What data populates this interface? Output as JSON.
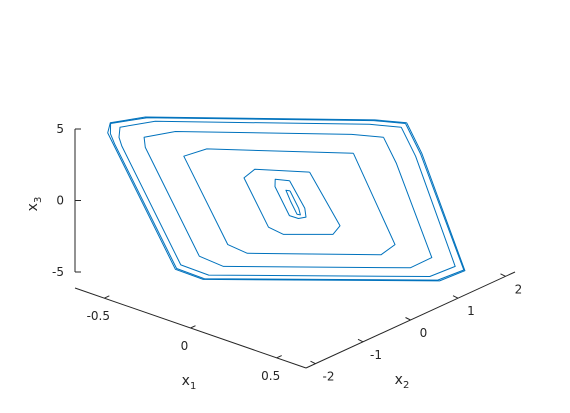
{
  "chart_data": {
    "type": "line",
    "projection": "3d",
    "grid": false,
    "axes": {
      "x1": {
        "label": "x",
        "subscript": "1",
        "ticks": [
          "-0.5",
          "0",
          "0.5"
        ]
      },
      "x2": {
        "label": "x",
        "subscript": "2",
        "ticks": [
          "-2",
          "-1",
          "0",
          "1",
          "2"
        ]
      },
      "x3": {
        "label": "x",
        "subscript": "3",
        "ticks": [
          "-5",
          "0",
          "5"
        ]
      }
    },
    "series": [
      {
        "color": "#0072BD",
        "loops": [
          [
            [
              2.0,
              5.6
            ],
            [
              1.6,
              5.8
            ],
            [
              -1.4,
              6.0
            ],
            [
              -1.9,
              5.6
            ],
            [
              -2.0,
              4.9
            ],
            [
              -2.0,
              4.2
            ],
            [
              -2.0,
              -4.5
            ],
            [
              -1.7,
              -5.2
            ],
            [
              1.4,
              -5.3
            ],
            [
              1.8,
              -4.6
            ],
            [
              2.0,
              3.5
            ],
            [
              2.0,
              5.6
            ]
          ],
          [
            [
              1.98,
              5.55
            ],
            [
              1.58,
              5.75
            ],
            [
              -1.38,
              5.95
            ],
            [
              -1.9,
              5.55
            ],
            [
              -1.97,
              4.85
            ],
            [
              -1.98,
              4.15
            ],
            [
              -1.98,
              -4.45
            ],
            [
              -1.68,
              -5.15
            ],
            [
              1.38,
              -5.25
            ],
            [
              1.79,
              -4.55
            ],
            [
              1.98,
              3.45
            ],
            [
              1.98,
              5.55
            ]
          ],
          [
            [
              1.9,
              5.3
            ],
            [
              1.5,
              5.5
            ],
            [
              -1.3,
              5.7
            ],
            [
              -1.8,
              5.3
            ],
            [
              -1.88,
              4.6
            ],
            [
              -1.9,
              4.0
            ],
            [
              -1.9,
              -4.2
            ],
            [
              -1.6,
              -4.9
            ],
            [
              1.3,
              -5.0
            ],
            [
              1.7,
              -4.3
            ],
            [
              1.9,
              3.3
            ],
            [
              1.9,
              5.3
            ]
          ],
          [
            [
              1.6,
              4.6
            ],
            [
              1.2,
              4.8
            ],
            [
              -1.1,
              5.0
            ],
            [
              -1.55,
              4.6
            ],
            [
              -1.6,
              3.9
            ],
            [
              -1.6,
              -3.6
            ],
            [
              -1.35,
              -4.3
            ],
            [
              1.1,
              -4.4
            ],
            [
              1.45,
              -3.7
            ],
            [
              1.6,
              2.8
            ],
            [
              1.6,
              4.6
            ]
          ],
          [
            [
              1.1,
              3.5
            ],
            [
              -0.8,
              3.8
            ],
            [
              -1.15,
              3.3
            ],
            [
              -1.15,
              -2.8
            ],
            [
              -0.95,
              -3.4
            ],
            [
              0.8,
              -3.5
            ],
            [
              1.05,
              -2.8
            ],
            [
              1.1,
              3.5
            ]
          ],
          [
            [
              0.4,
              2.2
            ],
            [
              -0.3,
              2.4
            ],
            [
              -0.5,
              1.8
            ],
            [
              -0.5,
              -1.6
            ],
            [
              -0.35,
              -2.1
            ],
            [
              0.3,
              -2.1
            ],
            [
              0.45,
              -1.5
            ],
            [
              0.4,
              2.2
            ]
          ],
          [
            [
              0.08,
              1.6
            ],
            [
              -0.1,
              1.7
            ],
            [
              -0.15,
              1.2
            ],
            [
              -0.15,
              -0.8
            ],
            [
              -0.05,
              -1.0
            ],
            [
              0.06,
              -0.9
            ],
            [
              0.1,
              -0.3
            ],
            [
              0.08,
              1.6
            ]
          ],
          [
            [
              0.02,
              0.9
            ],
            [
              -0.03,
              0.95
            ],
            [
              -0.04,
              0.2
            ],
            [
              -0.04,
              -0.7
            ],
            [
              0.0,
              -0.75
            ],
            [
              0.02,
              -0.3
            ],
            [
              0.02,
              0.9
            ]
          ]
        ]
      }
    ]
  }
}
